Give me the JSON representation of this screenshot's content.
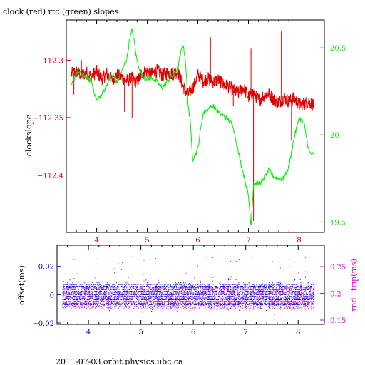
{
  "title": "clock (red) rtc (green) slopes",
  "footer": "2011-07-03  orbit.physics.ubc.ca",
  "colors": {
    "red": "#dd0000",
    "green": "#00ee00",
    "blue": "#0000dd",
    "magenta": "#dd00dd",
    "black": "#000000"
  },
  "chart_data": [
    {
      "type": "line",
      "name": "clock-rtc-slopes",
      "xlim": [
        3.4,
        8.5
      ],
      "x_ticks": [
        4,
        5,
        6,
        7,
        8
      ],
      "x_tick_labels": [
        "4",
        "5",
        "6",
        "7",
        "8"
      ],
      "ylabel_left": "clockslope",
      "ylim_left": [
        -112.45,
        -112.265
      ],
      "left_ticks": [
        -112.3,
        -112.35,
        -112.4
      ],
      "left_tick_labels": [
        "−112.3",
        "−112.35",
        "−112.4"
      ],
      "ylim_right": [
        19.44,
        20.66
      ],
      "right_ticks": [
        20.5,
        20,
        19.5
      ],
      "right_tick_labels": [
        "20.5",
        "20",
        "19.5"
      ],
      "series": [
        {
          "name": "clock",
          "color": "#dd0000",
          "axis": "left",
          "x": [
            3.5,
            3.6,
            3.7,
            3.8,
            3.9,
            4.0,
            4.1,
            4.2,
            4.3,
            4.4,
            4.5,
            4.6,
            4.7,
            4.8,
            4.9,
            5.0,
            5.1,
            5.2,
            5.3,
            5.4,
            5.5,
            5.6,
            5.7,
            5.8,
            5.9,
            6.0,
            6.1,
            6.2,
            6.3,
            6.4,
            6.5,
            6.6,
            6.7,
            6.8,
            6.9,
            7.0,
            7.1,
            7.2,
            7.3,
            7.4,
            7.5,
            7.6,
            7.7,
            7.8,
            7.9,
            8.0,
            8.1,
            8.2,
            8.3
          ],
          "y": [
            -112.312,
            -112.31,
            -112.313,
            -112.311,
            -112.314,
            -112.31,
            -112.316,
            -112.312,
            -112.317,
            -112.313,
            -112.315,
            -112.318,
            -112.316,
            -112.319,
            -112.311,
            -112.31,
            -112.312,
            -112.309,
            -112.313,
            -112.311,
            -112.312,
            -112.31,
            -112.322,
            -112.33,
            -112.324,
            -112.313,
            -112.318,
            -112.316,
            -112.319,
            -112.317,
            -112.321,
            -112.323,
            -112.326,
            -112.329,
            -112.324,
            -112.332,
            -112.328,
            -112.335,
            -112.331,
            -112.329,
            -112.334,
            -112.337,
            -112.332,
            -112.336,
            -112.333,
            -112.339,
            -112.338,
            -112.336,
            -112.34
          ],
          "spikes": [
            {
              "x": 3.55,
              "y": -112.33
            },
            {
              "x": 3.7,
              "y": -112.3
            },
            {
              "x": 4.55,
              "y": -112.345
            },
            {
              "x": 4.7,
              "y": -112.35
            },
            {
              "x": 5.75,
              "y": -112.33
            },
            {
              "x": 6.25,
              "y": -112.28
            },
            {
              "x": 6.7,
              "y": -112.34
            },
            {
              "x": 7.05,
              "y": -112.29
            },
            {
              "x": 7.1,
              "y": -112.44
            },
            {
              "x": 7.65,
              "y": -112.275
            },
            {
              "x": 7.85,
              "y": -112.37
            }
          ]
        },
        {
          "name": "rtc",
          "color": "#00ee00",
          "axis": "right",
          "x": [
            3.5,
            3.6,
            3.7,
            3.8,
            3.9,
            4.0,
            4.1,
            4.2,
            4.3,
            4.4,
            4.5,
            4.6,
            4.65,
            4.7,
            4.75,
            4.8,
            4.9,
            5.0,
            5.1,
            5.2,
            5.3,
            5.4,
            5.5,
            5.6,
            5.7,
            5.75,
            5.8,
            5.85,
            5.9,
            6.0,
            6.1,
            6.2,
            6.3,
            6.4,
            6.5,
            6.6,
            6.7,
            6.8,
            6.9,
            7.0,
            7.05,
            7.1,
            7.2,
            7.3,
            7.4,
            7.5,
            7.6,
            7.7,
            7.8,
            7.9,
            8.0,
            8.1,
            8.2,
            8.3
          ],
          "y": [
            20.28,
            20.36,
            20.35,
            20.33,
            20.3,
            20.2,
            20.23,
            20.29,
            20.34,
            20.3,
            20.37,
            20.44,
            20.55,
            20.6,
            20.52,
            20.42,
            20.34,
            20.32,
            20.33,
            20.3,
            20.27,
            20.31,
            20.34,
            20.38,
            20.52,
            20.45,
            20.2,
            20.07,
            19.86,
            19.92,
            20.12,
            20.15,
            20.17,
            20.13,
            20.11,
            20.09,
            20.05,
            19.9,
            19.78,
            19.65,
            19.48,
            19.72,
            19.72,
            19.74,
            19.8,
            19.76,
            19.75,
            19.75,
            19.82,
            19.98,
            20.1,
            20.06,
            19.9,
            19.88
          ]
        }
      ]
    },
    {
      "type": "scatter",
      "name": "offset-rndtrip",
      "xlim": [
        3.4,
        8.5
      ],
      "x_ticks": [
        4,
        5,
        6,
        7,
        8
      ],
      "x_tick_labels": [
        "4",
        "5",
        "6",
        "7",
        "8"
      ],
      "ylabel_left": "offset(ms)",
      "ylim_left": [
        -0.021,
        0.035
      ],
      "left_ticks": [
        0.02,
        0,
        -0.02
      ],
      "left_tick_labels": [
        "0.02",
        "0",
        "−0.02"
      ],
      "ylabel_right": "rnd−trip(ms)",
      "ylim_right": [
        0.142,
        0.29
      ],
      "right_ticks": [
        0.25,
        0.2,
        0.15
      ],
      "right_tick_labels": [
        "0.25",
        "0.2",
        "0.15"
      ],
      "series": [
        {
          "name": "offset",
          "color": "#0000dd",
          "axis": "left",
          "band": [
            -0.008,
            0.008
          ],
          "outliers": [
            -0.012,
            0.013
          ]
        },
        {
          "name": "rnd-trip",
          "color": "#dd00dd",
          "axis": "right",
          "band": [
            0.17,
            0.215
          ],
          "outliers": [
            0.16,
            0.27
          ]
        }
      ]
    }
  ]
}
